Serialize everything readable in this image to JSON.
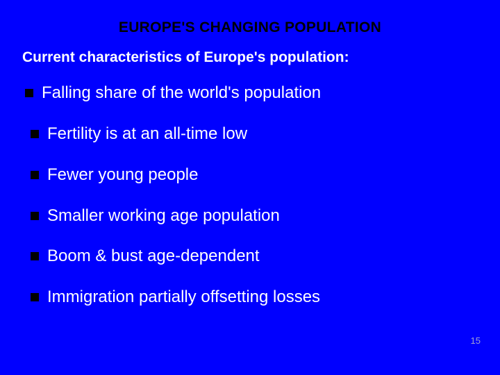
{
  "background_color": "#0000ff",
  "title": {
    "text": "EUROPE'S CHANGING POPULATION",
    "color": "#000000",
    "font_size": 21,
    "font_weight": "bold"
  },
  "subtitle": {
    "text": "Current characteristics of Europe's population:",
    "color": "#ffffff",
    "font_size": 21,
    "font_weight": "bold"
  },
  "bullets": [
    {
      "text": "Falling share of the world's population",
      "indented": false
    },
    {
      "text": "Fertility is at an all-time low",
      "indented": true
    },
    {
      "text": "Fewer young people",
      "indented": true
    },
    {
      "text": "Smaller working age population",
      "indented": true
    },
    {
      "text": "Boom & bust age-dependent",
      "indented": true
    },
    {
      "text": "Immigration partially offsetting losses",
      "indented": true
    }
  ],
  "bullet_style": {
    "marker_color": "#000000",
    "marker_size": 12,
    "text_color": "#ffffff",
    "text_font_size": 24
  },
  "page_number": "15"
}
